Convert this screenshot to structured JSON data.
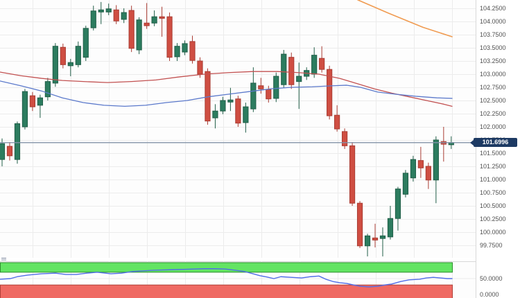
{
  "price_badge": {
    "value": "101.6996"
  },
  "price_axis_labels": [
    {
      "text": "104.2500",
      "price": 104.25
    },
    {
      "text": "104.0000",
      "price": 104.0
    },
    {
      "text": "103.7500",
      "price": 103.75
    },
    {
      "text": "103.5000",
      "price": 103.5
    },
    {
      "text": "103.2500",
      "price": 103.25
    },
    {
      "text": "103.0000",
      "price": 103.0
    },
    {
      "text": "102.7500",
      "price": 102.75
    },
    {
      "text": "102.5000",
      "price": 102.5
    },
    {
      "text": "102.2500",
      "price": 102.25
    },
    {
      "text": "102.0000",
      "price": 102.0
    },
    {
      "text": "101.7500",
      "price": 101.75
    },
    {
      "text": "101.5000",
      "price": 101.5
    },
    {
      "text": "101.2500",
      "price": 101.25
    },
    {
      "text": "101.0000",
      "price": 101.0
    },
    {
      "text": "100.7500",
      "price": 100.75
    },
    {
      "text": "100.5000",
      "price": 100.5
    },
    {
      "text": "100.2500",
      "price": 100.25
    },
    {
      "text": "100.0000",
      "price": 100.0
    },
    {
      "text": "99.7500",
      "price": 99.75
    }
  ],
  "indicator_axis_labels": [
    {
      "text": "50.0000",
      "value": 50
    },
    {
      "text": "0.0000",
      "value": 0
    }
  ],
  "colors": {
    "chart_bg": "#fdfdfd",
    "grid": "#ececec",
    "candle_up_fill": "#2c7c5f",
    "candle_up_border": "#215e48",
    "candle_down_fill": "#cf4e42",
    "candle_down_border": "#a93c33",
    "ma_red": "#c25151",
    "ma_blue": "#5b79cb",
    "ma_orange": "#f09b51",
    "price_line": "#8292a8",
    "badge_bg": "#1d3a63",
    "badge_text": "#ffffff",
    "band_green_fill": "#63e463",
    "band_green_border": "#2d8f2d",
    "band_red_fill": "#ef6a63",
    "band_red_border": "#b04038",
    "oscillator_line": "#4f6ce8",
    "axis_text": "#4f4f4f"
  },
  "chart_data": {
    "type": "candlestick",
    "current_price": 101.6996,
    "ylim": [
      99.54,
      104.41
    ],
    "grid": true,
    "candles": [
      [
        101.38,
        101.78,
        101.25,
        101.68
      ],
      [
        101.63,
        101.71,
        101.36,
        101.45
      ],
      [
        101.38,
        102.1,
        101.3,
        102.06
      ],
      [
        102.0,
        102.72,
        101.95,
        102.67
      ],
      [
        102.59,
        102.66,
        102.3,
        102.38
      ],
      [
        102.41,
        102.61,
        102.17,
        102.55
      ],
      [
        102.57,
        102.93,
        102.5,
        102.86
      ],
      [
        102.83,
        103.59,
        102.76,
        103.53
      ],
      [
        103.51,
        103.58,
        103.11,
        103.18
      ],
      [
        103.16,
        103.29,
        102.96,
        103.22
      ],
      [
        103.18,
        103.62,
        103.13,
        103.53
      ],
      [
        103.32,
        103.92,
        103.25,
        103.87
      ],
      [
        103.88,
        104.3,
        103.83,
        104.2
      ],
      [
        104.18,
        104.37,
        103.95,
        104.22
      ],
      [
        104.18,
        104.34,
        104.12,
        104.24
      ],
      [
        104.22,
        104.31,
        103.95,
        104.01
      ],
      [
        104.04,
        104.25,
        103.97,
        104.17
      ],
      [
        104.21,
        104.3,
        103.42,
        103.49
      ],
      [
        103.46,
        104.08,
        103.38,
        104.03
      ],
      [
        103.97,
        104.35,
        103.86,
        103.92
      ],
      [
        103.97,
        104.21,
        103.91,
        104.09
      ],
      [
        104.09,
        104.28,
        103.71,
        104.06
      ],
      [
        104.09,
        104.17,
        103.25,
        103.32
      ],
      [
        103.33,
        103.59,
        103.25,
        103.53
      ],
      [
        103.42,
        103.64,
        103.36,
        103.58
      ],
      [
        103.62,
        103.73,
        103.2,
        103.26
      ],
      [
        103.25,
        103.32,
        102.93,
        103.0
      ],
      [
        103.05,
        103.11,
        102.04,
        102.11
      ],
      [
        102.17,
        102.43,
        101.97,
        102.3
      ],
      [
        102.3,
        102.57,
        102.24,
        102.5
      ],
      [
        102.47,
        102.74,
        102.3,
        102.51
      ],
      [
        102.53,
        102.59,
        102.0,
        102.07
      ],
      [
        102.08,
        102.46,
        101.89,
        102.38
      ],
      [
        102.34,
        103.13,
        102.28,
        102.83
      ],
      [
        102.78,
        102.93,
        102.63,
        102.72
      ],
      [
        102.71,
        102.78,
        102.46,
        102.53
      ],
      [
        102.54,
        103.03,
        102.47,
        102.96
      ],
      [
        102.8,
        103.46,
        102.74,
        103.38
      ],
      [
        103.32,
        103.41,
        102.72,
        102.8
      ],
      [
        102.86,
        103.22,
        102.34,
        102.96
      ],
      [
        102.96,
        103.13,
        102.89,
        103.07
      ],
      [
        103.0,
        103.51,
        102.93,
        103.36
      ],
      [
        103.3,
        103.53,
        103.03,
        103.09
      ],
      [
        103.09,
        103.16,
        102.14,
        102.21
      ],
      [
        102.22,
        102.41,
        101.91,
        101.96
      ],
      [
        101.91,
        101.97,
        101.58,
        101.64
      ],
      [
        101.64,
        101.71,
        100.5,
        100.55
      ],
      [
        100.55,
        100.59,
        99.7,
        99.74
      ],
      [
        99.74,
        99.97,
        99.54,
        99.93
      ],
      [
        99.89,
        100.16,
        99.71,
        99.85
      ],
      [
        99.88,
        100.09,
        99.54,
        99.93
      ],
      [
        99.91,
        100.5,
        99.86,
        100.26
      ],
      [
        100.26,
        100.86,
        100.03,
        100.82
      ],
      [
        100.72,
        101.18,
        100.66,
        101.12
      ],
      [
        101.03,
        101.45,
        100.96,
        101.38
      ],
      [
        101.36,
        101.62,
        101.03,
        101.22
      ],
      [
        101.25,
        101.32,
        100.82,
        100.99
      ],
      [
        100.99,
        101.82,
        100.55,
        101.75
      ],
      [
        101.72,
        102.0,
        101.34,
        101.67
      ],
      [
        101.66,
        101.82,
        101.58,
        101.7
      ]
    ],
    "overlays": {
      "sma_red": [
        [
          0,
          103.04
        ],
        [
          30,
          102.97
        ],
        [
          60,
          102.92
        ],
        [
          90,
          102.88
        ],
        [
          120,
          102.86
        ],
        [
          155,
          102.84
        ],
        [
          190,
          102.86
        ],
        [
          225,
          102.89
        ],
        [
          260,
          102.95
        ],
        [
          295,
          103.0
        ],
        [
          330,
          103.03
        ],
        [
          365,
          103.05
        ],
        [
          400,
          103.05
        ],
        [
          430,
          103.03
        ],
        [
          460,
          103.0
        ],
        [
          490,
          102.92
        ],
        [
          515,
          102.82
        ],
        [
          540,
          102.72
        ],
        [
          565,
          102.64
        ],
        [
          590,
          102.57
        ],
        [
          615,
          102.5
        ],
        [
          640,
          102.43
        ],
        [
          652,
          102.39
        ]
      ],
      "sma_blue": [
        [
          0,
          102.87
        ],
        [
          30,
          102.78
        ],
        [
          60,
          102.68
        ],
        [
          90,
          102.55
        ],
        [
          120,
          102.46
        ],
        [
          150,
          102.41
        ],
        [
          180,
          102.39
        ],
        [
          210,
          102.41
        ],
        [
          240,
          102.46
        ],
        [
          270,
          102.5
        ],
        [
          300,
          102.57
        ],
        [
          330,
          102.62
        ],
        [
          360,
          102.67
        ],
        [
          390,
          102.72
        ],
        [
          420,
          102.75
        ],
        [
          450,
          102.76
        ],
        [
          480,
          102.78
        ],
        [
          500,
          102.79
        ],
        [
          520,
          102.75
        ],
        [
          545,
          102.66
        ],
        [
          570,
          102.62
        ],
        [
          600,
          102.58
        ],
        [
          630,
          102.55
        ],
        [
          652,
          102.54
        ]
      ],
      "sma_orange": [
        [
          516,
          104.41
        ],
        [
          560,
          104.16
        ],
        [
          610,
          103.89
        ],
        [
          652,
          103.71
        ]
      ]
    },
    "indicator": {
      "type": "oscillator",
      "bands": {
        "upper": [
          70,
          100
        ],
        "lower": [
          0,
          30
        ]
      },
      "line": [
        [
          0,
          48
        ],
        [
          15,
          50
        ],
        [
          25,
          56
        ],
        [
          40,
          61
        ],
        [
          60,
          65
        ],
        [
          80,
          67
        ],
        [
          95,
          63
        ],
        [
          110,
          63
        ],
        [
          125,
          67
        ],
        [
          140,
          70
        ],
        [
          160,
          65
        ],
        [
          175,
          67
        ],
        [
          190,
          72
        ],
        [
          205,
          74
        ],
        [
          220,
          76
        ],
        [
          235,
          77
        ],
        [
          250,
          78
        ],
        [
          265,
          79
        ],
        [
          280,
          80
        ],
        [
          295,
          81
        ],
        [
          310,
          81
        ],
        [
          325,
          80
        ],
        [
          340,
          76
        ],
        [
          353,
          72
        ],
        [
          365,
          65
        ],
        [
          375,
          59
        ],
        [
          385,
          55
        ],
        [
          395,
          50
        ],
        [
          405,
          56
        ],
        [
          420,
          54
        ],
        [
          435,
          52
        ],
        [
          448,
          56
        ],
        [
          460,
          58
        ],
        [
          470,
          48
        ],
        [
          480,
          41
        ],
        [
          490,
          37
        ],
        [
          500,
          35
        ],
        [
          510,
          30
        ],
        [
          520,
          26
        ],
        [
          532,
          24
        ],
        [
          545,
          26
        ],
        [
          555,
          30
        ],
        [
          565,
          33
        ],
        [
          578,
          41
        ],
        [
          590,
          46
        ],
        [
          605,
          48
        ],
        [
          615,
          52
        ],
        [
          625,
          54
        ],
        [
          635,
          52
        ],
        [
          645,
          50
        ],
        [
          652,
          50
        ]
      ]
    }
  }
}
